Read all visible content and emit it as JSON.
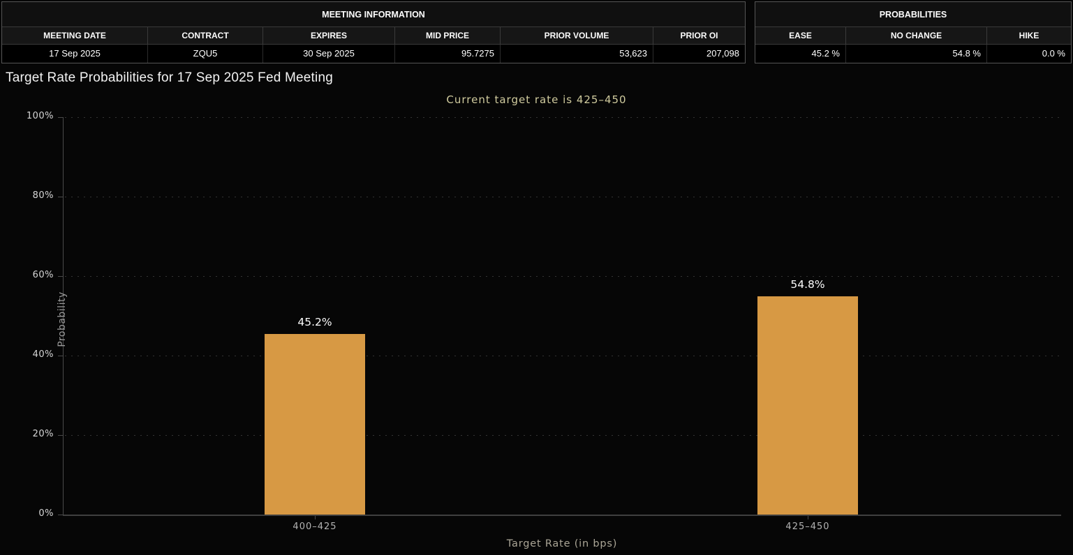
{
  "meeting_info": {
    "title": "MEETING INFORMATION",
    "columns": [
      "MEETING DATE",
      "CONTRACT",
      "EXPIRES",
      "MID PRICE",
      "PRIOR VOLUME",
      "PRIOR OI"
    ],
    "values": [
      "17 Sep 2025",
      "ZQU5",
      "30 Sep 2025",
      "95.7275",
      "53,623",
      "207,098"
    ]
  },
  "probabilities": {
    "title": "PROBABILITIES",
    "columns": [
      "EASE",
      "NO CHANGE",
      "HIKE"
    ],
    "values": [
      "45.2 %",
      "54.8 %",
      "0.0 %"
    ]
  },
  "chart_data": {
    "type": "bar",
    "title": "Target Rate Probabilities for 17 Sep 2025 Fed Meeting",
    "subtitle": "Current target rate is 425–450",
    "categories": [
      "400–425",
      "425–450"
    ],
    "values": [
      45.2,
      54.8
    ],
    "data_labels": [
      "45.2%",
      "54.8%"
    ],
    "xlabel": "Target Rate (in bps)",
    "ylabel": "Probability",
    "ylim": [
      0,
      100
    ],
    "yticks": [
      "0%",
      "20%",
      "40%",
      "60%",
      "80%",
      "100%"
    ],
    "grid": "horizontal-dotted",
    "legend": "none",
    "bar_color": "#d79944",
    "subtitle_color": "#d0cb9e",
    "background_color": "#060606"
  }
}
